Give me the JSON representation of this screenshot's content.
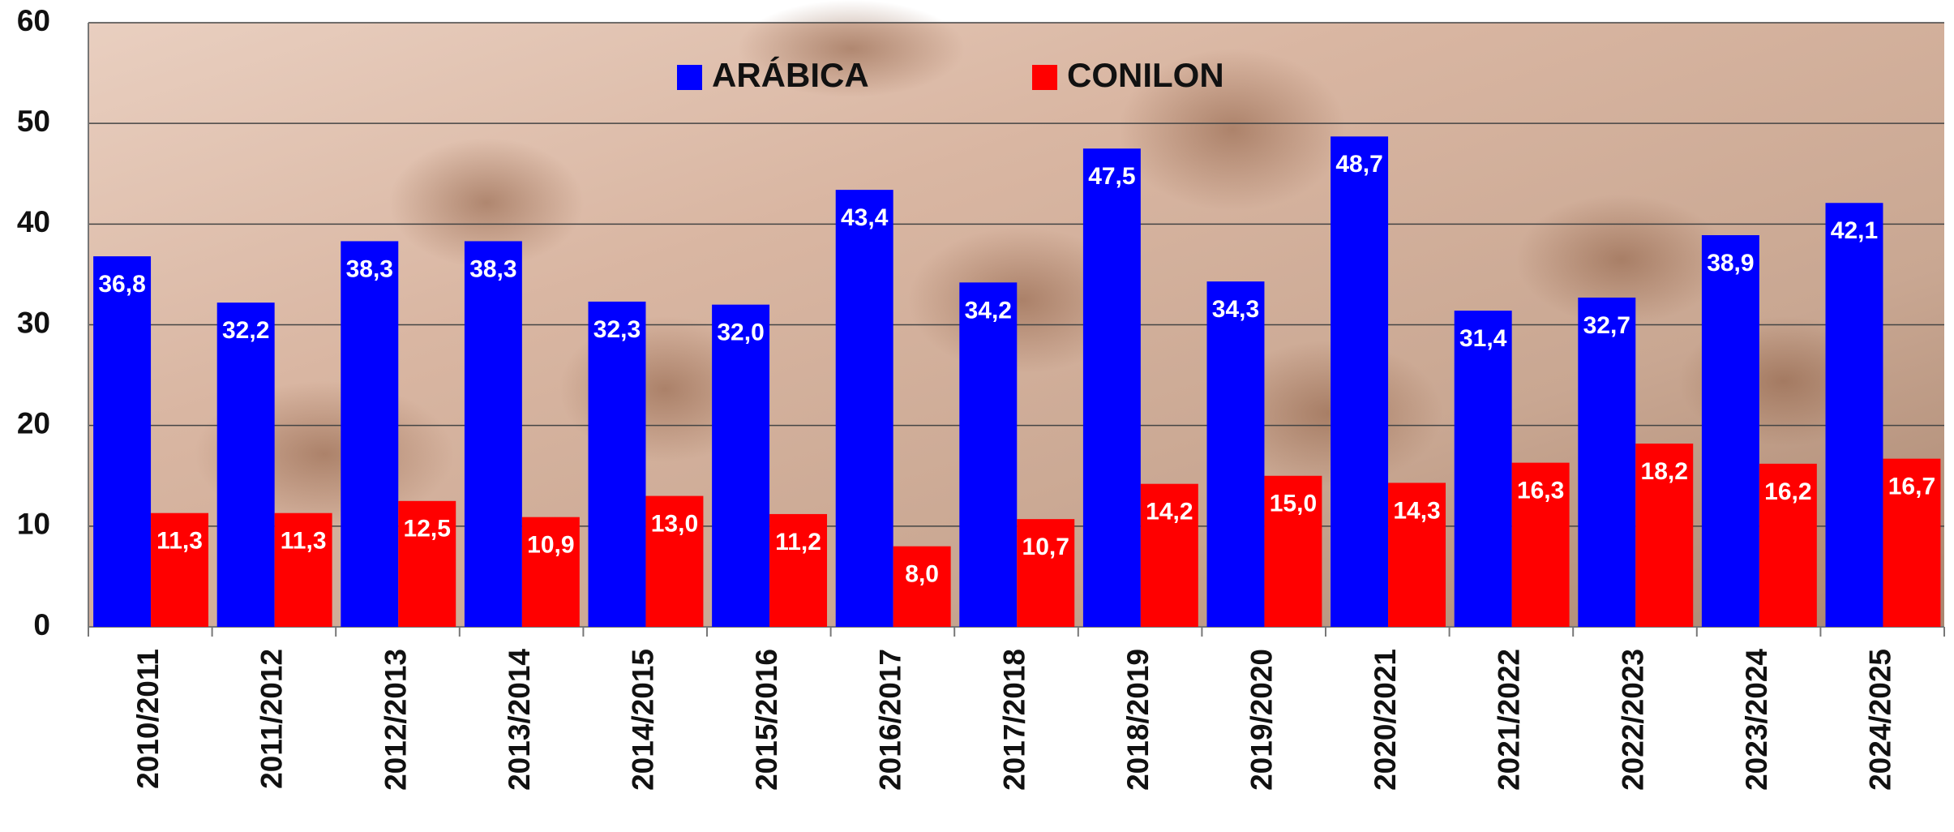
{
  "chart_data": {
    "type": "bar",
    "categories": [
      "2010/2011",
      "2011/2012",
      "2012/2013",
      "2013/2014",
      "2014/2015",
      "2015/2016",
      "2016/2017",
      "2017/2018",
      "2018/2019",
      "2019/2020",
      "2020/2021",
      "2021/2022",
      "2022/2023",
      "2023/2024",
      "2024/2025"
    ],
    "series": [
      {
        "name": "ARÁBICA",
        "color": "#0000ff",
        "values": [
          36.8,
          32.2,
          38.3,
          38.3,
          32.3,
          32.0,
          43.4,
          34.2,
          47.5,
          34.3,
          48.7,
          31.4,
          32.7,
          38.9,
          42.1
        ],
        "value_labels": [
          "36,8",
          "32,2",
          "38,3",
          "38,3",
          "32,3",
          "32,0",
          "43,4",
          "34,2",
          "47,5",
          "34,3",
          "48,7",
          "31,4",
          "32,7",
          "38,9",
          "42,1"
        ]
      },
      {
        "name": "CONILON",
        "color": "#ff0000",
        "values": [
          11.3,
          11.3,
          12.5,
          10.9,
          13.0,
          11.2,
          8.0,
          10.7,
          14.2,
          15.0,
          14.3,
          16.3,
          18.2,
          16.2,
          16.7
        ],
        "value_labels": [
          "11,3",
          "11,3",
          "12,5",
          "10,9",
          "13,0",
          "11,2",
          "8,0",
          "10,7",
          "14,2",
          "15,0",
          "14,3",
          "16,3",
          "18,2",
          "16,2",
          "16,7"
        ]
      }
    ],
    "ylim": [
      0,
      60
    ],
    "yticks": [
      0,
      10,
      20,
      30,
      40,
      50,
      60
    ],
    "grid": true,
    "legend": "top"
  }
}
